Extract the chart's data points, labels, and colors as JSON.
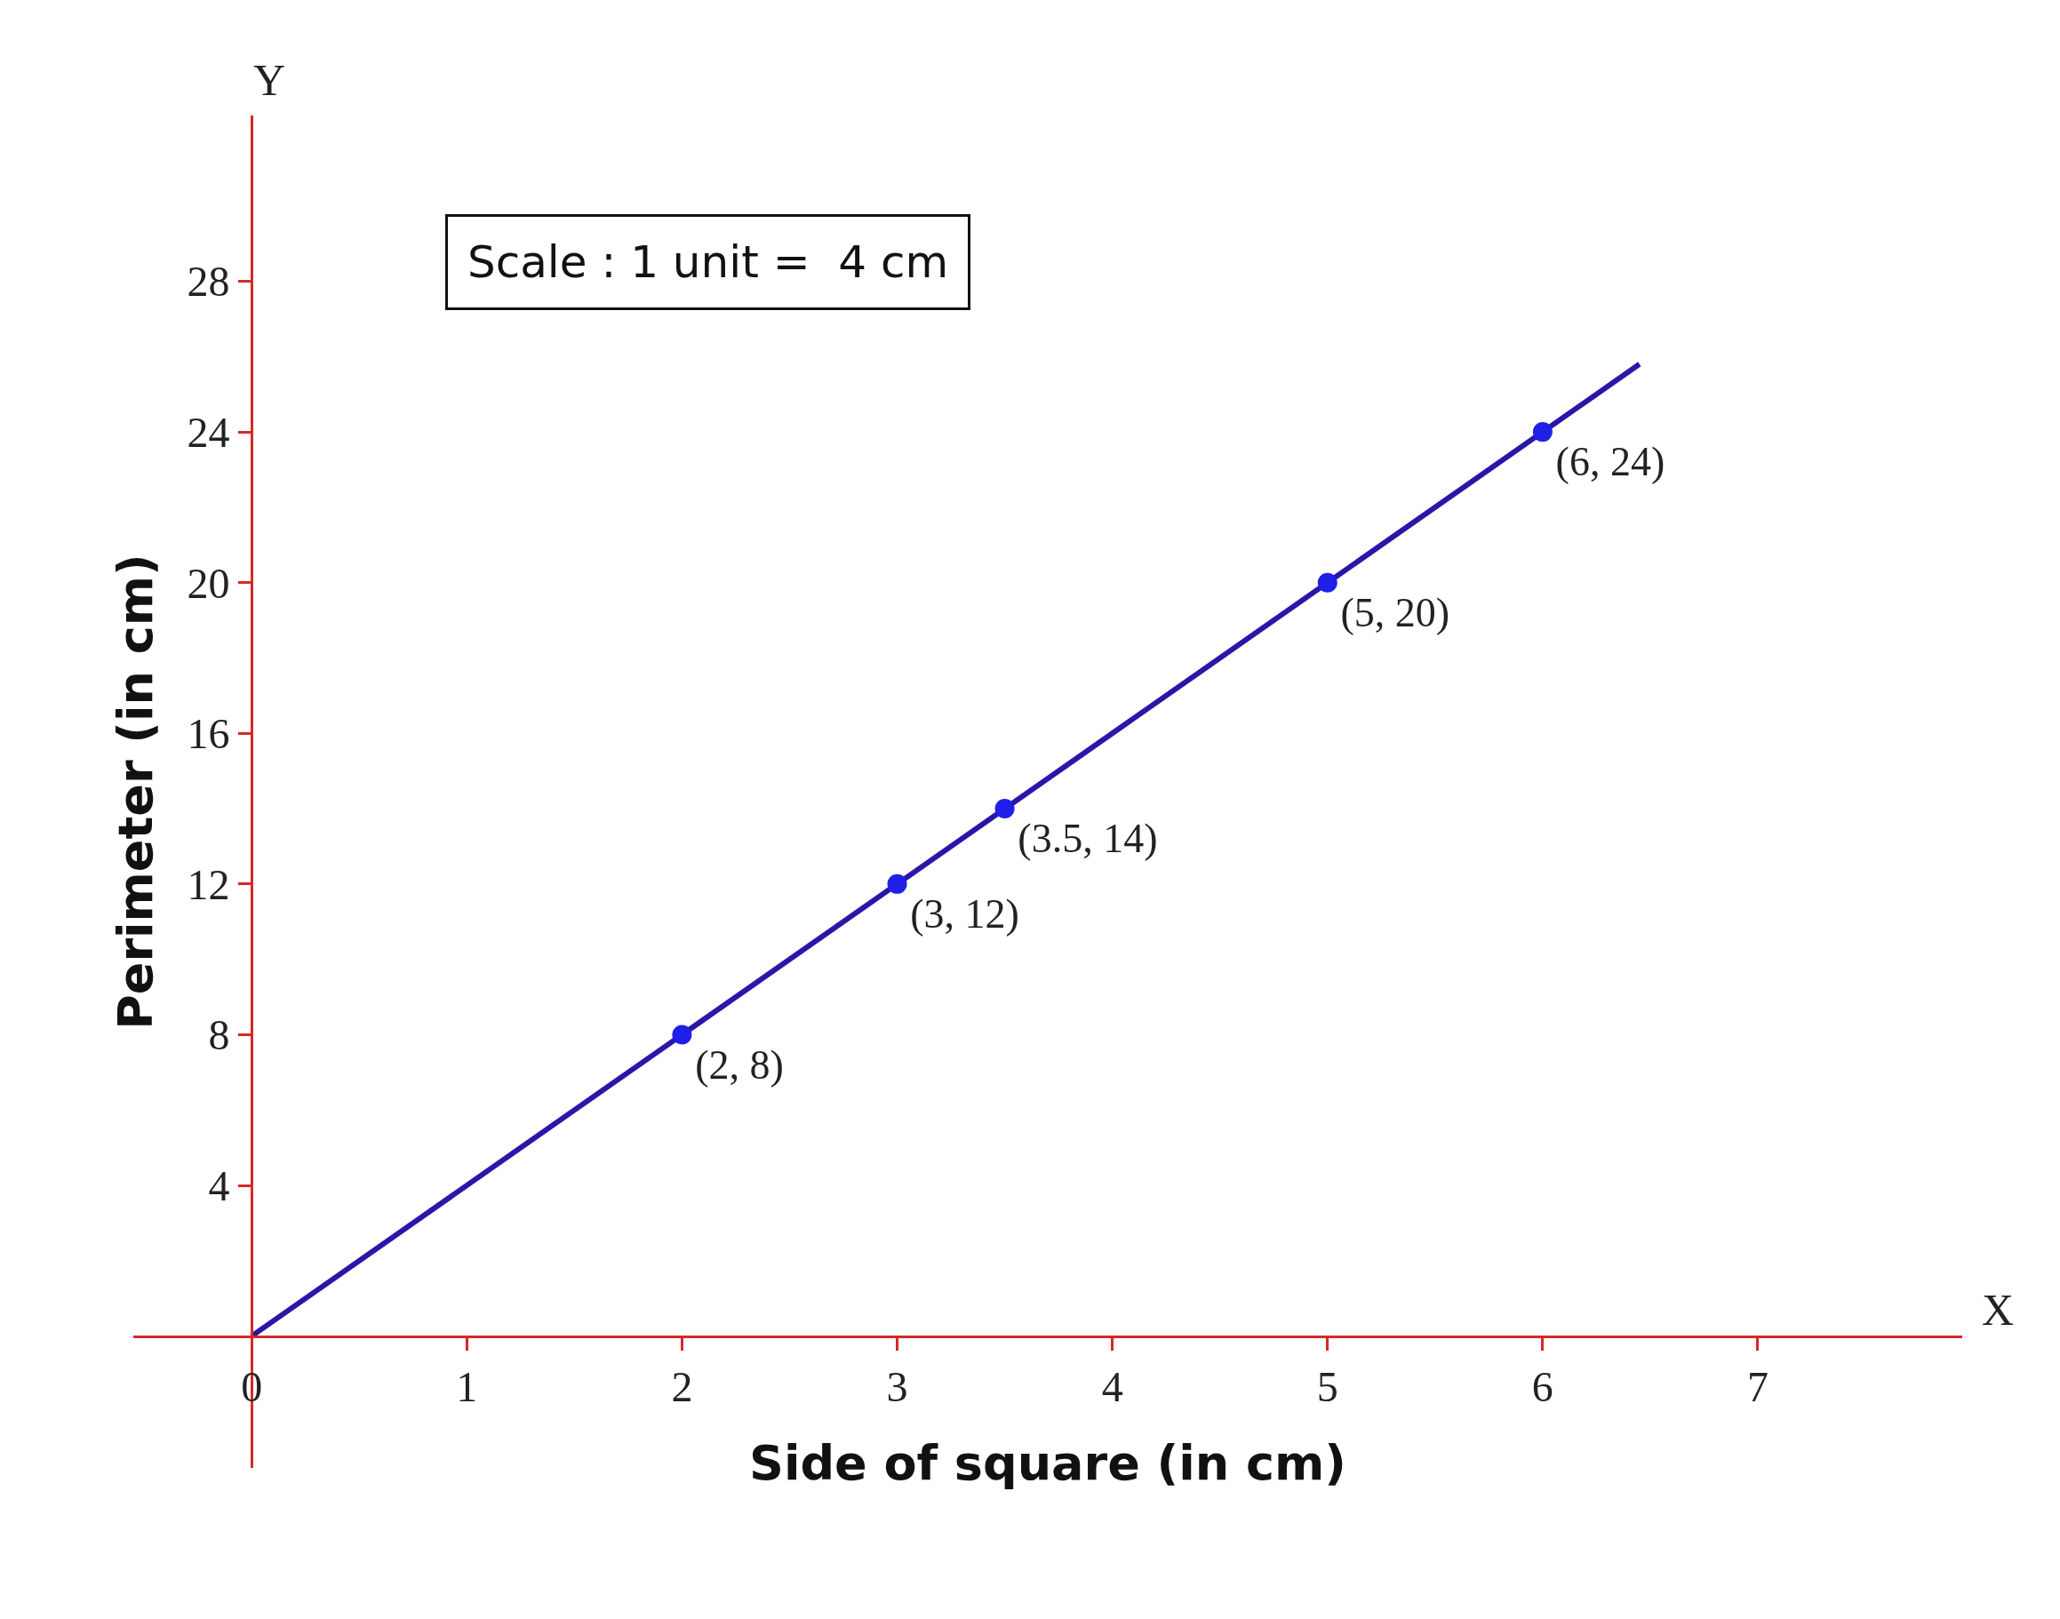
{
  "chart_data": {
    "type": "line",
    "xlabel": "Side of square (in cm)",
    "ylabel": "Perimeter (in cm)",
    "xlim": [
      -0.55,
      7.95
    ],
    "ylim": [
      -3.5,
      32.4
    ],
    "xticks": [
      0,
      1,
      2,
      3,
      4,
      5,
      6,
      7
    ],
    "yticks": [
      4,
      8,
      12,
      16,
      20,
      24,
      28
    ],
    "series": [
      {
        "color": "#2a16a8",
        "marker": "none",
        "x": [
          0,
          6.45
        ],
        "values": [
          0,
          25.8
        ]
      },
      {
        "type": "scatter",
        "color": "#1f1fe8",
        "marker": "circle",
        "x": [
          2,
          3,
          3.5,
          5,
          6
        ],
        "values": [
          8,
          12,
          14,
          20,
          24
        ],
        "value_labels": [
          "(2, 8)",
          "(3, 12)",
          "(3.5, 14)",
          "(5, 20)",
          "(6, 24)"
        ]
      }
    ],
    "annotations": [
      "Scale : 1 unit =  4 cm",
      "X",
      "Y"
    ]
  }
}
